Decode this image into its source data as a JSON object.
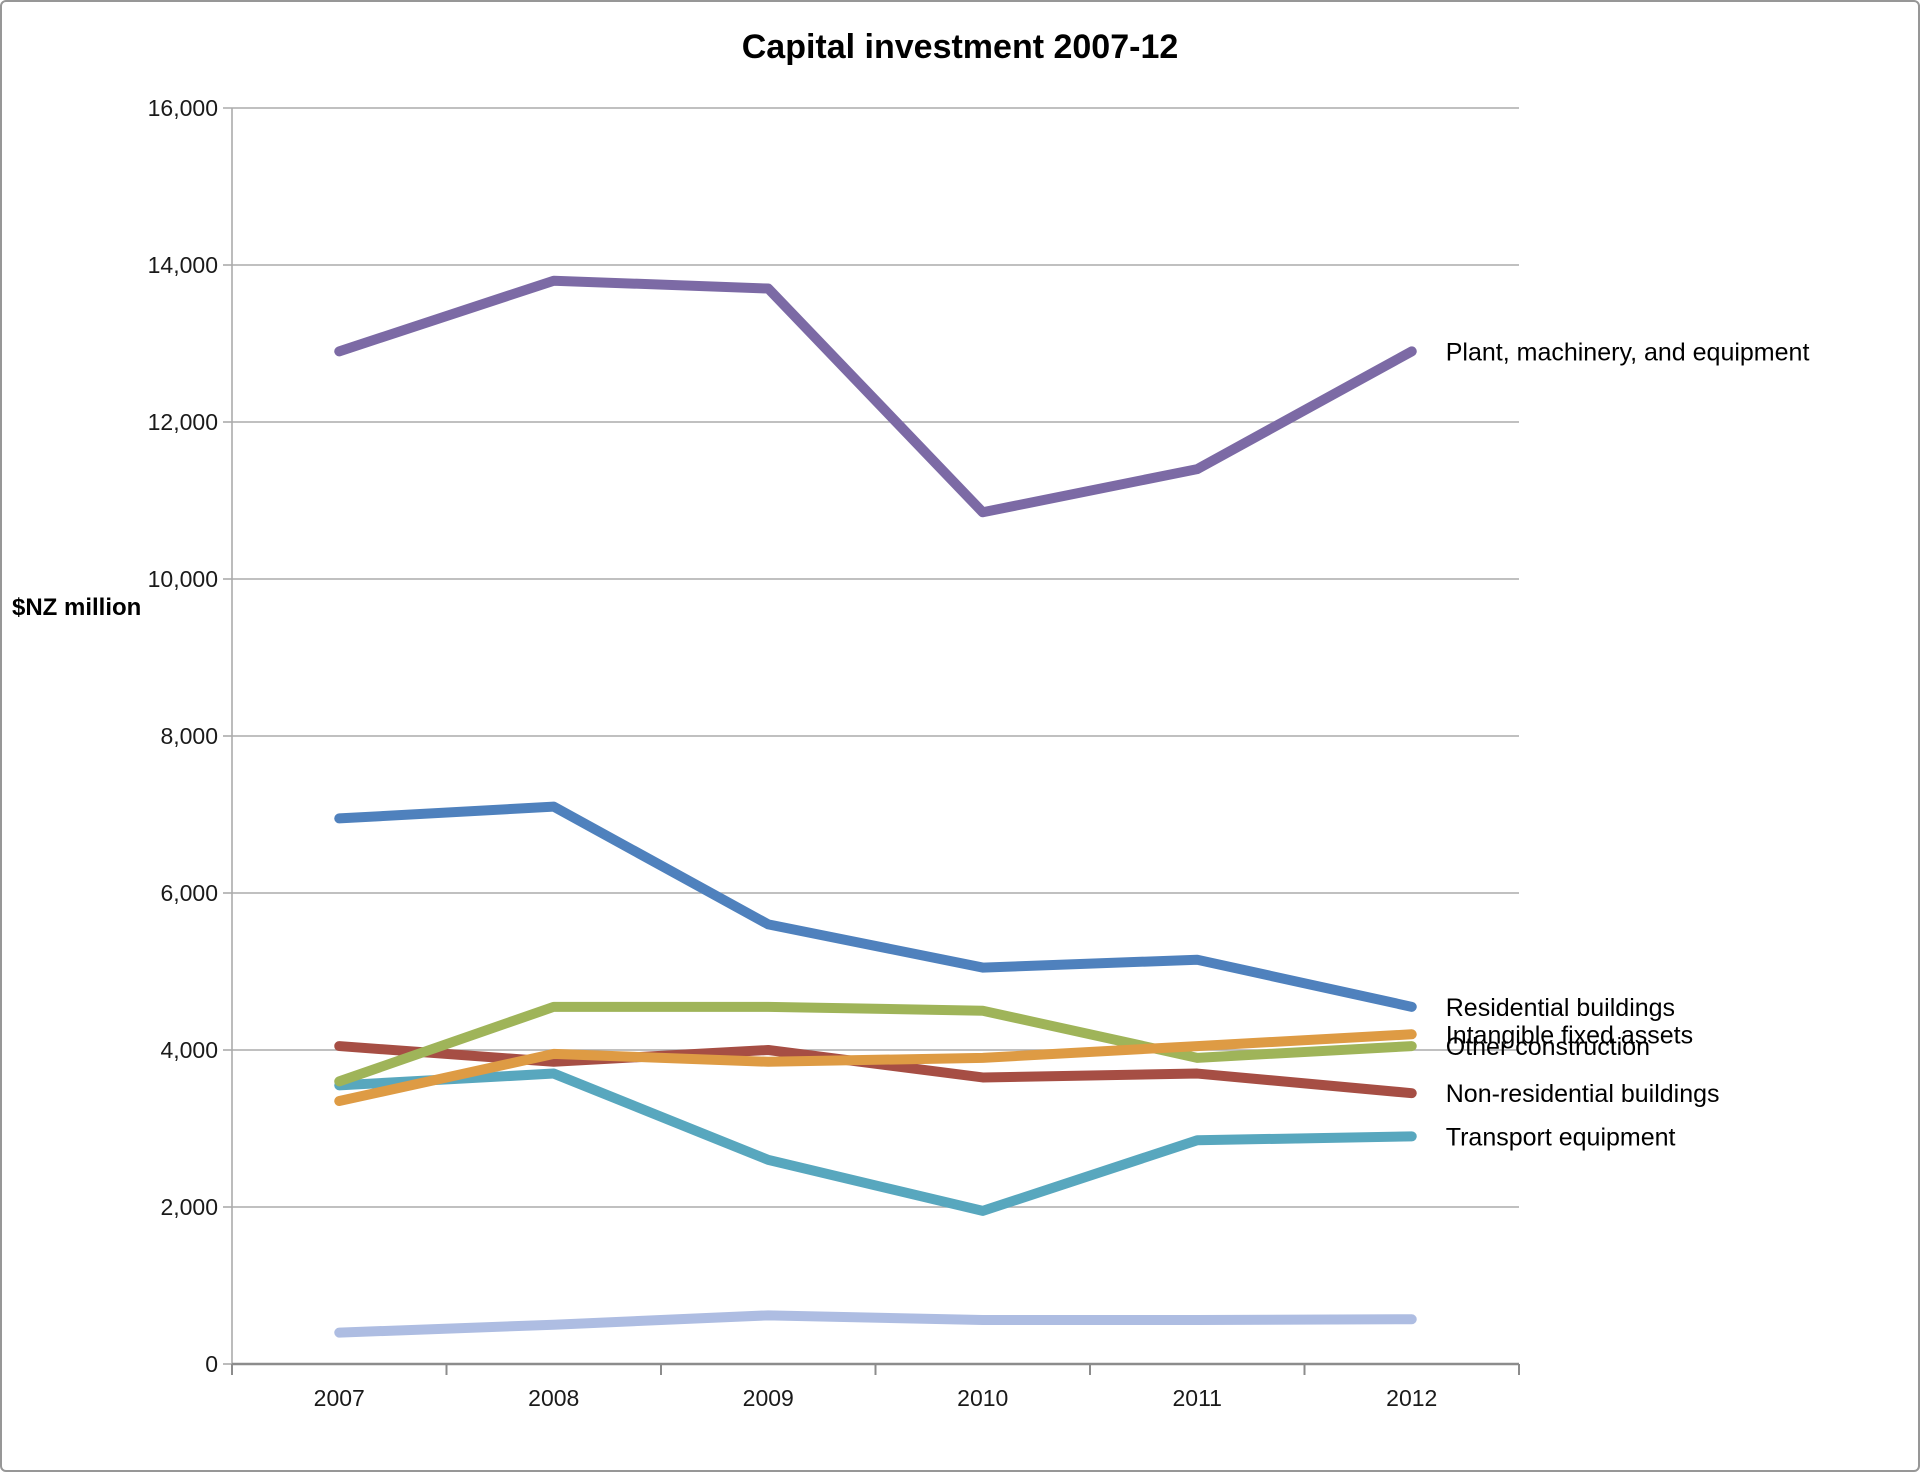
{
  "title": "Capital investment 2007-12",
  "y_axis_label": "$NZ million",
  "chart_data": {
    "type": "line",
    "title": "Capital investment 2007-12",
    "ylabel": "$NZ million",
    "xlabel": "",
    "categories": [
      "2007",
      "2008",
      "2009",
      "2010",
      "2011",
      "2012"
    ],
    "ylim": [
      0,
      16000
    ],
    "ytick_step": 2000,
    "ytick_labels": [
      "0",
      "2,000",
      "4,000",
      "6,000",
      "8,000",
      "10,000",
      "12,000",
      "14,000",
      "16,000"
    ],
    "grid": true,
    "legend_position": "labels-at-line-ends-right",
    "series": [
      {
        "name": "Residential buildings",
        "color": "#4F81BD",
        "values": [
          6950,
          7100,
          5600,
          5050,
          5150,
          4550
        ]
      },
      {
        "name": "Non-residential buildings",
        "color": "#A64E44",
        "values": [
          4050,
          3850,
          4000,
          3650,
          3700,
          3450
        ]
      },
      {
        "name": "Transport equipment",
        "color": "#58A7BE",
        "values": [
          3550,
          3700,
          2600,
          1950,
          2850,
          2900
        ]
      },
      {
        "name": "Other construction",
        "color": "#9FB459",
        "values": [
          3600,
          4550,
          4550,
          4500,
          3900,
          4050
        ]
      },
      {
        "name": "Intangible fixed assets",
        "color": "#DE9B44",
        "values": [
          3350,
          3950,
          3850,
          3900,
          4050,
          4200
        ]
      },
      {
        "name": "Plant, machinery, and equipment",
        "color": "#7C6AA5",
        "values": [
          12900,
          13800,
          13700,
          10850,
          11400,
          12900
        ]
      },
      {
        "name": "",
        "color": "#AEBDE2",
        "values": [
          400,
          500,
          620,
          560,
          560,
          570
        ]
      }
    ],
    "colors": {
      "gridline": "#ABABAB",
      "axis": "#8C8C8C",
      "tick_text": "#1A1A1A",
      "label_text": "#000000"
    }
  }
}
